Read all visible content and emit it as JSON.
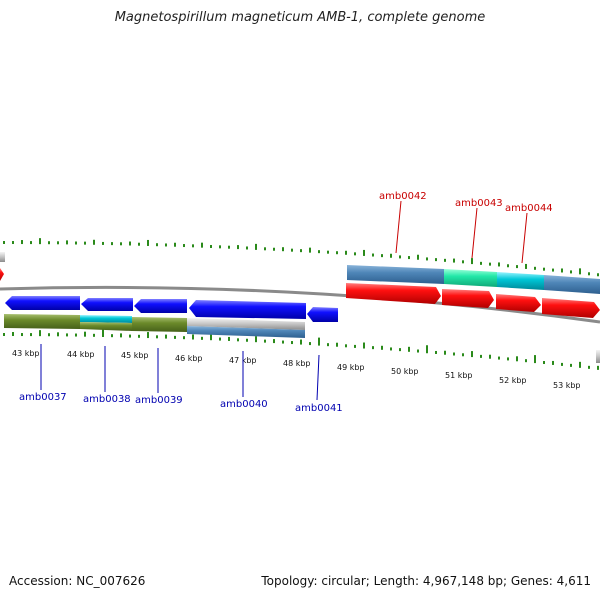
{
  "title": "Magnetospirillum magneticum AMB-1, complete genome",
  "footer": {
    "accession": "Accession: NC_007626",
    "summary": "Topology: circular; Length: 4,967,148 bp; Genes: 4,611"
  },
  "colors": {
    "forward_gene": "#e8000f",
    "reverse_gene": "#0000e0",
    "forward_label": "#c80000",
    "reverse_label": "#0000b0",
    "tick": "#2a8a1a",
    "backbone": "#777777",
    "cog_blue": "#4f86b8",
    "cog_cyan": "#00c8d8",
    "cog_green": "#6b8a2a",
    "cog_grey": "#c0c0c0",
    "cog_teal": "#22e8a8"
  },
  "kbp_labels": [
    "43 kbp",
    "44 kbp",
    "45 kbp",
    "46 kbp",
    "47 kbp",
    "48 kbp",
    "49 kbp",
    "50 kbp",
    "51 kbp",
    "52 kbp",
    "53 kbp"
  ],
  "reverse_genes": [
    "amb0037",
    "amb0038",
    "amb0039",
    "amb0040",
    "amb0041"
  ],
  "forward_genes": [
    "amb0042",
    "amb0043",
    "amb0044"
  ]
}
